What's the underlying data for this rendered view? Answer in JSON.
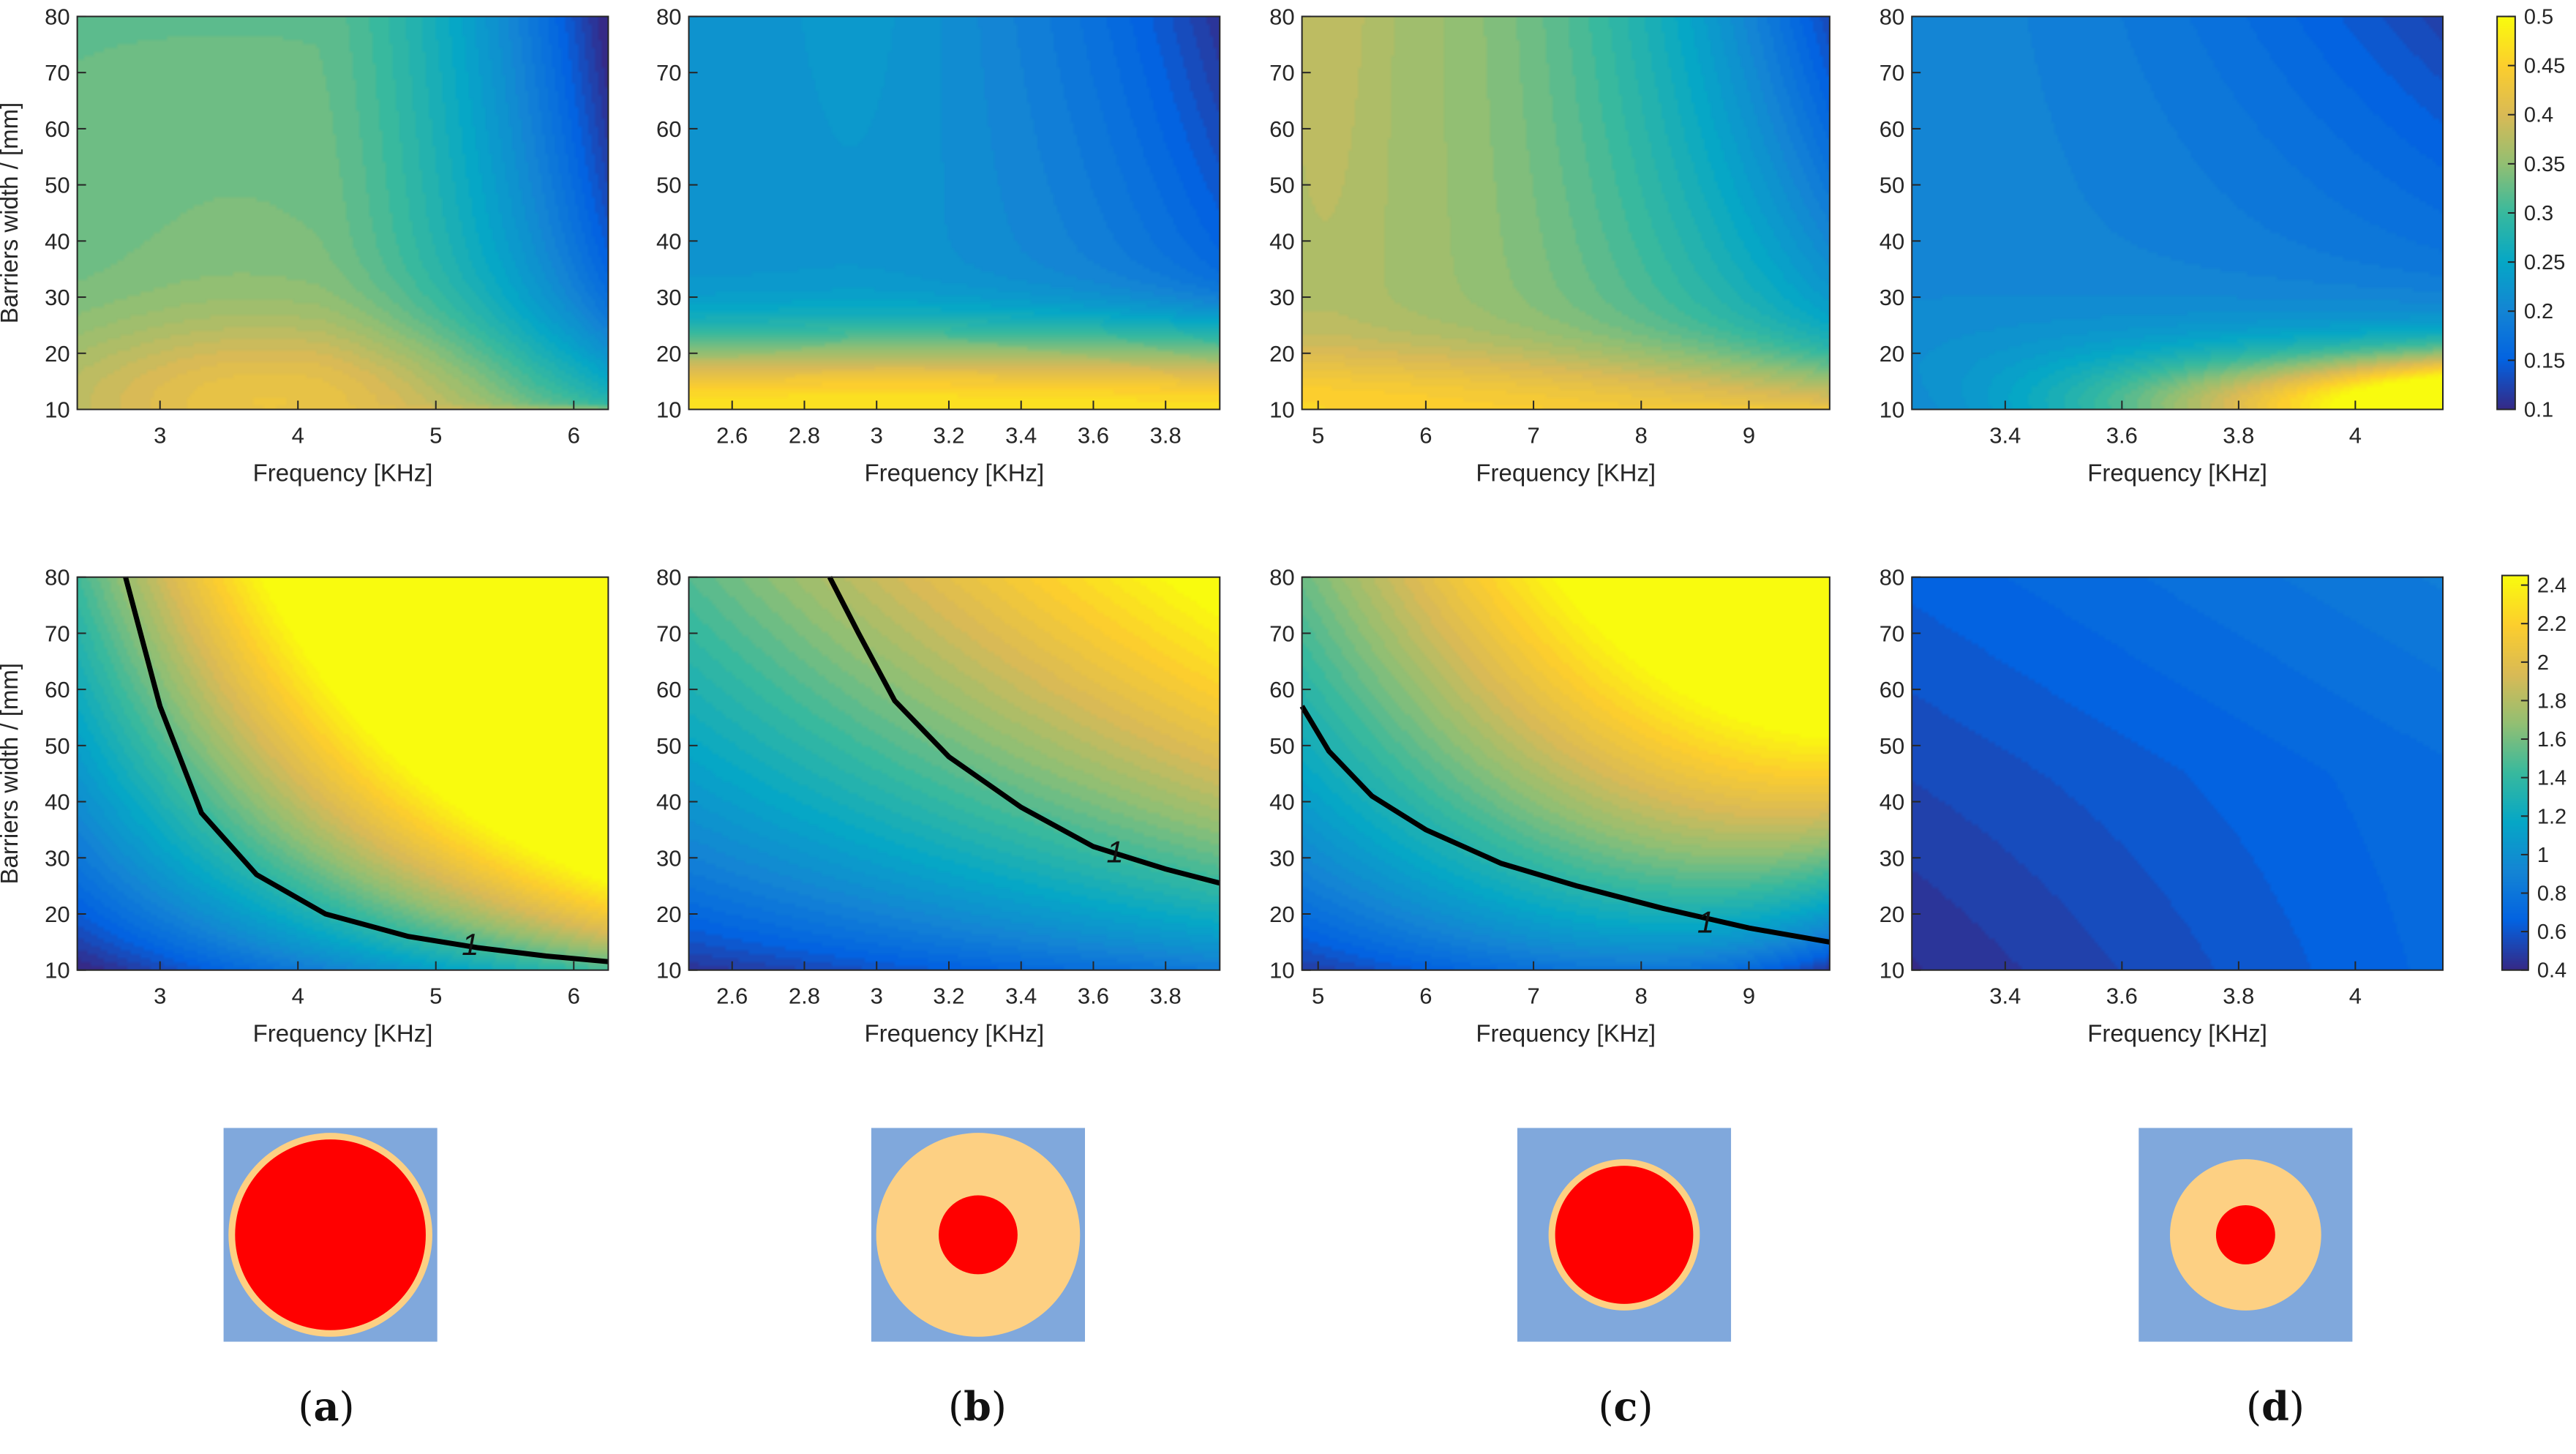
{
  "captions": [
    "a",
    "b",
    "c",
    "d"
  ],
  "colors": {
    "parula": [
      "#352a87",
      "#0363e1",
      "#1485d4",
      "#06a7c6",
      "#38b99e",
      "#92bf73",
      "#d9ba56",
      "#fcce2e",
      "#f9fb0e"
    ],
    "unit_cell_background": "#80a8dc",
    "coating": "#fdd083",
    "core": "#ff0000",
    "contour": "#000000"
  },
  "chart_data": [
    {
      "id": "top-a",
      "type": "heatmap",
      "ylabel": "Barriers width / [mm]",
      "xlabel": "Frequency [KHz]",
      "xlim": [
        2.4,
        6.25
      ],
      "ylim": [
        10,
        80
      ],
      "xticks": [
        3,
        4,
        5,
        6
      ],
      "xticklabels": [
        "3",
        "4",
        "5",
        "6"
      ],
      "yticks": [
        10,
        20,
        30,
        40,
        50,
        60,
        70,
        80
      ],
      "yticklabels": [
        "10",
        "20",
        "30",
        "40",
        "50",
        "60",
        "70",
        "80"
      ],
      "colorbar_ref": "top",
      "pattern": "band_gap_a"
    },
    {
      "id": "top-b",
      "type": "heatmap",
      "ylabel": "",
      "xlabel": "Frequency [KHz]",
      "xlim": [
        2.48,
        3.95
      ],
      "ylim": [
        10,
        80
      ],
      "xticks": [
        2.6,
        2.8,
        3,
        3.2,
        3.4,
        3.6,
        3.8
      ],
      "xticklabels": [
        "2.6",
        "2.8",
        "3",
        "3.2",
        "3.4",
        "3.6",
        "3.8"
      ],
      "yticks": [
        10,
        20,
        30,
        40,
        50,
        60,
        70,
        80
      ],
      "yticklabels": [
        "10",
        "20",
        "30",
        "40",
        "50",
        "60",
        "70",
        "80"
      ],
      "colorbar_ref": "top",
      "pattern": "band_gap_b"
    },
    {
      "id": "top-c",
      "type": "heatmap",
      "ylabel": "",
      "xlabel": "Frequency [KHz]",
      "xlim": [
        4.85,
        9.75
      ],
      "ylim": [
        10,
        80
      ],
      "xticks": [
        5,
        6,
        7,
        8,
        9
      ],
      "xticklabels": [
        "5",
        "6",
        "7",
        "8",
        "9"
      ],
      "yticks": [
        10,
        20,
        30,
        40,
        50,
        60,
        70,
        80
      ],
      "yticklabels": [
        "10",
        "20",
        "30",
        "40",
        "50",
        "60",
        "70",
        "80"
      ],
      "colorbar_ref": "top",
      "pattern": "band_gap_c"
    },
    {
      "id": "top-d",
      "type": "heatmap",
      "ylabel": "",
      "xlabel": "Frequency [KHz]",
      "xlim": [
        3.24,
        4.15
      ],
      "ylim": [
        10,
        80
      ],
      "xticks": [
        3.4,
        3.6,
        3.8,
        4
      ],
      "xticklabels": [
        "3.4",
        "3.6",
        "3.8",
        "4"
      ],
      "yticks": [
        10,
        20,
        30,
        40,
        50,
        60,
        70,
        80
      ],
      "yticklabels": [
        "10",
        "20",
        "30",
        "40",
        "50",
        "60",
        "70",
        "80"
      ],
      "colorbar_ref": "top",
      "pattern": "band_gap_d"
    },
    {
      "id": "bottom-a",
      "type": "heatmap",
      "ylabel": "Barriers width / [mm]",
      "xlabel": "Frequency [KHz]",
      "xlim": [
        2.4,
        6.25
      ],
      "ylim": [
        10,
        80
      ],
      "xticks": [
        3,
        4,
        5,
        6
      ],
      "xticklabels": [
        "3",
        "4",
        "5",
        "6"
      ],
      "yticks": [
        10,
        20,
        30,
        40,
        50,
        60,
        70,
        80
      ],
      "yticklabels": [
        "10",
        "20",
        "30",
        "40",
        "50",
        "60",
        "70",
        "80"
      ],
      "colorbar_ref": "bottom",
      "pattern": "ratio_a",
      "contour_level": "1",
      "contour_line": [
        [
          2.75,
          80
        ],
        [
          3.0,
          57
        ],
        [
          3.3,
          38
        ],
        [
          3.7,
          27
        ],
        [
          4.2,
          20
        ],
        [
          4.8,
          16
        ],
        [
          5.3,
          14
        ],
        [
          5.8,
          12.5
        ],
        [
          6.25,
          11.5
        ]
      ],
      "contour_label_at": [
        5.25,
        14.5
      ]
    },
    {
      "id": "bottom-b",
      "type": "heatmap",
      "ylabel": "",
      "xlabel": "Frequency [KHz]",
      "xlim": [
        2.48,
        3.95
      ],
      "ylim": [
        10,
        80
      ],
      "xticks": [
        2.6,
        2.8,
        3,
        3.2,
        3.4,
        3.6,
        3.8
      ],
      "xticklabels": [
        "2.6",
        "2.8",
        "3",
        "3.2",
        "3.4",
        "3.6",
        "3.8"
      ],
      "yticks": [
        10,
        20,
        30,
        40,
        50,
        60,
        70,
        80
      ],
      "yticklabels": [
        "10",
        "20",
        "30",
        "40",
        "50",
        "60",
        "70",
        "80"
      ],
      "colorbar_ref": "bottom",
      "pattern": "ratio_b",
      "contour_level": "1",
      "contour_line": [
        [
          2.87,
          80
        ],
        [
          2.95,
          70
        ],
        [
          3.05,
          58
        ],
        [
          3.2,
          48
        ],
        [
          3.4,
          39
        ],
        [
          3.6,
          32
        ],
        [
          3.8,
          28
        ],
        [
          3.95,
          25.5
        ]
      ],
      "contour_label_at": [
        3.66,
        31
      ]
    },
    {
      "id": "bottom-c",
      "type": "heatmap",
      "ylabel": "",
      "xlabel": "Frequency [KHz]",
      "xlim": [
        4.85,
        9.75
      ],
      "ylim": [
        10,
        80
      ],
      "xticks": [
        5,
        6,
        7,
        8,
        9
      ],
      "xticklabels": [
        "5",
        "6",
        "7",
        "8",
        "9"
      ],
      "yticks": [
        10,
        20,
        30,
        40,
        50,
        60,
        70,
        80
      ],
      "yticklabels": [
        "10",
        "20",
        "30",
        "40",
        "50",
        "60",
        "70",
        "80"
      ],
      "colorbar_ref": "bottom",
      "pattern": "ratio_c",
      "contour_level": "1",
      "contour_line": [
        [
          4.85,
          57
        ],
        [
          5.1,
          49
        ],
        [
          5.5,
          41
        ],
        [
          6.0,
          35
        ],
        [
          6.7,
          29
        ],
        [
          7.4,
          25
        ],
        [
          8.2,
          21
        ],
        [
          9.0,
          17.5
        ],
        [
          9.75,
          15
        ]
      ],
      "contour_label_at": [
        8.6,
        18.5
      ]
    },
    {
      "id": "bottom-d",
      "type": "heatmap",
      "ylabel": "",
      "xlabel": "Frequency [KHz]",
      "xlim": [
        3.24,
        4.15
      ],
      "ylim": [
        10,
        80
      ],
      "xticks": [
        3.4,
        3.6,
        3.8,
        4
      ],
      "xticklabels": [
        "3.4",
        "3.6",
        "3.8",
        "4"
      ],
      "yticks": [
        10,
        20,
        30,
        40,
        50,
        60,
        70,
        80
      ],
      "yticklabels": [
        "10",
        "20",
        "30",
        "40",
        "50",
        "60",
        "70",
        "80"
      ],
      "colorbar_ref": "bottom",
      "pattern": "ratio_d"
    }
  ],
  "colorbars": [
    {
      "id": "top",
      "min": 0.1,
      "max": 0.5,
      "ticks": [
        0.1,
        0.15,
        0.2,
        0.25,
        0.3,
        0.35,
        0.4,
        0.45,
        0.5
      ],
      "ticklabels": [
        "0.1",
        "0.15",
        "0.2",
        "0.25",
        "0.3",
        "0.35",
        "0.4",
        "0.45",
        "0.5"
      ]
    },
    {
      "id": "bottom",
      "min": 0.4,
      "max": 2.45,
      "ticks": [
        0.4,
        0.6,
        0.8,
        1,
        1.2,
        1.4,
        1.6,
        1.8,
        2,
        2.2,
        2.4
      ],
      "ticklabels": [
        "0.4",
        "0.6",
        "0.8",
        "1",
        "1.2",
        "1.4",
        "1.6",
        "1.8",
        "2",
        "2.2",
        "2.4"
      ]
    }
  ]
}
